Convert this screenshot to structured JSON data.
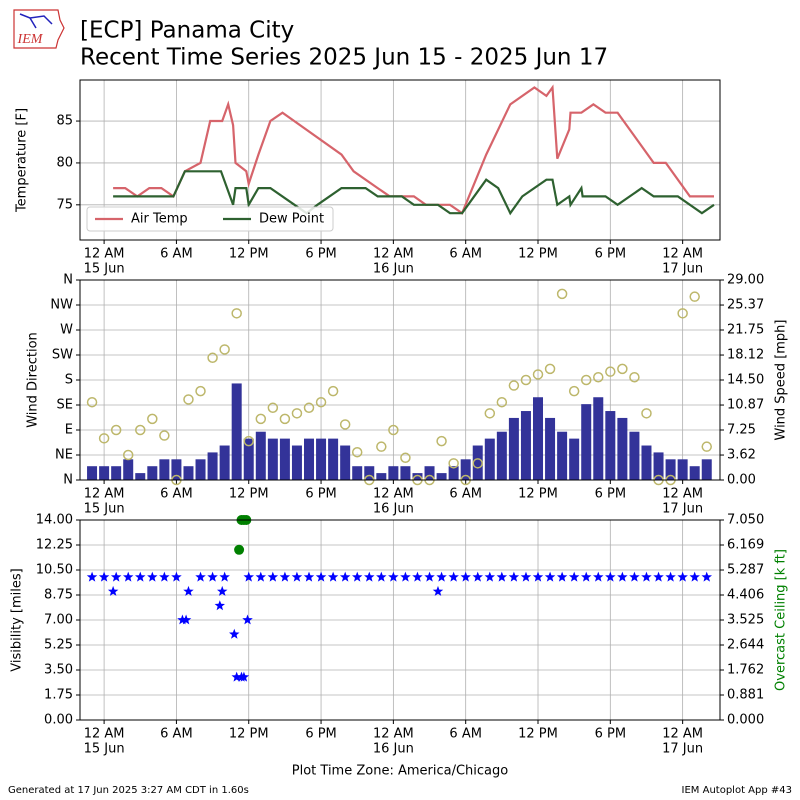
{
  "header": {
    "logo": "IEM",
    "title": "[ECP] Panama City",
    "subtitle": "Recent Time Series 2025 Jun 15 - 2025 Jun 17"
  },
  "footer": {
    "left": "Generated at 17 Jun 2025 3:27 AM CDT in 1.60s",
    "right": "IEM Autoplot App #43"
  },
  "chart_data": [
    {
      "type": "line",
      "ylabel": "Temperature [F]",
      "xlim": [
        -2,
        51.1
      ],
      "ylim": [
        70.8,
        89.9
      ],
      "yticks": [
        75,
        80,
        85
      ],
      "grid": true,
      "legend": "lower left",
      "xticks": [
        {
          "value": 0,
          "label": "12 AM",
          "sublabel": "15 Jun"
        },
        {
          "value": 6,
          "label": "6 AM"
        },
        {
          "value": 12,
          "label": "12 PM"
        },
        {
          "value": 18,
          "label": "6 PM"
        },
        {
          "value": 24,
          "label": "12 AM",
          "sublabel": "16 Jun"
        },
        {
          "value": 30,
          "label": "6 AM"
        },
        {
          "value": 36,
          "label": "12 PM"
        },
        {
          "value": 42,
          "label": "6 PM"
        },
        {
          "value": 48,
          "label": "12 AM",
          "sublabel": "17 Jun"
        }
      ],
      "series": [
        {
          "name": "Air Temp",
          "type": "line",
          "color": "#d6646b",
          "x": [
            0.75,
            1.75,
            2.75,
            3.75,
            4.75,
            5.75,
            6.7,
            8.0,
            8.8,
            9.8,
            10.3,
            10.7,
            10.9,
            11.8,
            12,
            12.8,
            13.8,
            14.8,
            19.7,
            20.7,
            22.7,
            23.7,
            25.7,
            26.7,
            28.7,
            29.7,
            31.7,
            33.7,
            35.7,
            36.7,
            37.2,
            37.6,
            38.6,
            38.7,
            39.6,
            40.6,
            41.6,
            42.6,
            45.6,
            46.6,
            48.6,
            50.6
          ],
          "values": [
            77,
            77,
            76,
            77,
            77,
            76,
            79,
            80,
            85,
            85,
            87,
            84.5,
            80,
            79,
            77.5,
            81,
            85,
            86,
            81,
            79,
            77,
            76,
            76,
            75,
            75,
            74,
            81,
            87,
            89,
            88,
            89,
            80.5,
            84,
            86,
            86,
            87,
            86,
            86,
            80,
            80,
            76,
            76
          ]
        },
        {
          "name": "Dew Point",
          "type": "line",
          "color": "#2e6130",
          "x": [
            0.75,
            5.75,
            6.7,
            9.7,
            10.7,
            10.9,
            11.8,
            12,
            12.8,
            13.8,
            16.8,
            17.7,
            19.7,
            21.7,
            22.7,
            24.7,
            25.7,
            27.7,
            28.7,
            29.7,
            31.7,
            32.7,
            33.7,
            34.7,
            36.7,
            37.2,
            37.6,
            38.6,
            38.7,
            39.6,
            39.7,
            41.6,
            42.6,
            44.6,
            45.6,
            47.6,
            49.6,
            50.6
          ],
          "values": [
            76,
            76,
            79,
            79,
            75,
            77,
            77,
            75,
            77,
            77,
            74,
            75,
            77,
            77,
            76,
            76,
            75,
            75,
            74,
            74,
            78,
            77,
            74,
            76,
            78,
            78,
            75,
            76,
            75,
            77,
            76,
            76,
            75,
            77,
            76,
            76,
            74,
            75
          ]
        }
      ]
    },
    {
      "type": "scatter",
      "ylabel": "Wind Direction",
      "y2label": "Wind Speed [mph]",
      "xlim": [
        -2,
        51.1
      ],
      "ylim": [
        0,
        360
      ],
      "y2lim": [
        0,
        29
      ],
      "grid": true,
      "xticks": [
        {
          "value": 0,
          "label": "12 AM",
          "sublabel": "15 Jun"
        },
        {
          "value": 6,
          "label": "6 AM"
        },
        {
          "value": 12,
          "label": "12 PM"
        },
        {
          "value": 18,
          "label": "6 PM"
        },
        {
          "value": 24,
          "label": "12 AM",
          "sublabel": "16 Jun"
        },
        {
          "value": 30,
          "label": "6 AM"
        },
        {
          "value": 36,
          "label": "12 PM"
        },
        {
          "value": 42,
          "label": "6 PM"
        },
        {
          "value": 48,
          "label": "12 AM",
          "sublabel": "17 Jun"
        }
      ],
      "yticks": [
        {
          "value": 0,
          "label": "N"
        },
        {
          "value": 45,
          "label": "NE"
        },
        {
          "value": 90,
          "label": "E"
        },
        {
          "value": 135,
          "label": "SE"
        },
        {
          "value": 180,
          "label": "S"
        },
        {
          "value": 225,
          "label": "SW"
        },
        {
          "value": 270,
          "label": "W"
        },
        {
          "value": 315,
          "label": "NW"
        },
        {
          "value": 360,
          "label": "N"
        }
      ],
      "y2ticks": [
        {
          "value": 0,
          "label": "0.00"
        },
        3.62,
        7.25,
        10.87,
        {
          "value": 14.5,
          "label": "14.50"
        },
        18.12,
        21.75,
        25.37,
        {
          "value": 29,
          "label": "29.00"
        }
      ],
      "series": [
        {
          "type": "bar",
          "axis": "y2",
          "color": "#333399",
          "x": [
            -1,
            0,
            1,
            2,
            3,
            4,
            5,
            6,
            7,
            8,
            9,
            10,
            11,
            12,
            13,
            14,
            15,
            16,
            17,
            18,
            19,
            20,
            21,
            22,
            23,
            24,
            25,
            26,
            27,
            28,
            29,
            30,
            31,
            32,
            33,
            34,
            35,
            36,
            37,
            38,
            39,
            40,
            41,
            42,
            43,
            44,
            45,
            46,
            47,
            48,
            49,
            50
          ],
          "values": [
            2,
            2,
            2,
            3,
            1,
            2,
            3,
            3,
            2,
            3,
            4,
            5,
            14,
            6,
            7,
            6,
            6,
            5,
            6,
            6,
            6,
            5,
            2,
            2,
            1,
            2,
            2,
            1,
            2,
            1,
            2,
            3,
            5,
            6,
            7,
            9,
            10,
            12,
            9,
            7,
            6,
            11,
            12,
            10,
            9,
            7,
            5,
            4,
            3,
            3,
            2,
            3
          ]
        },
        {
          "type": "scatter",
          "color": "#bdb76b",
          "x": [
            -1,
            0,
            1,
            2,
            3,
            4,
            5,
            6,
            7,
            8,
            9,
            10,
            11,
            12,
            13,
            14,
            15,
            16,
            17,
            18,
            19,
            20,
            21,
            22,
            23,
            24,
            25,
            26,
            27,
            28,
            29,
            30,
            31,
            32,
            33,
            34,
            35,
            36,
            37,
            38,
            39,
            40,
            41,
            42,
            43,
            44,
            45,
            46,
            47,
            48,
            49,
            50
          ],
          "values": [
            140,
            75,
            90,
            45,
            90,
            110,
            80,
            0,
            145,
            160,
            220,
            235,
            300,
            70,
            110,
            130,
            110,
            120,
            130,
            140,
            160,
            100,
            50,
            0,
            60,
            90,
            40,
            0,
            0,
            70,
            30,
            0,
            30,
            120,
            140,
            170,
            180,
            190,
            200,
            335,
            160,
            180,
            185,
            195,
            200,
            185,
            120,
            0,
            0,
            300,
            330,
            60
          ]
        }
      ]
    },
    {
      "type": "scatter",
      "ylabel": "Visibility [miles]",
      "y2label": "Overcast Ceiling [k ft]",
      "y2label_color": "#008000",
      "xlabel": "Plot Time Zone: America/Chicago",
      "xlim": [
        -2,
        51.1
      ],
      "ylim": [
        0,
        14
      ],
      "y2lim": [
        0,
        7.05
      ],
      "grid": true,
      "xticks": [
        {
          "value": 0,
          "label": "12 AM",
          "sublabel": "15 Jun"
        },
        {
          "value": 6,
          "label": "6 AM"
        },
        {
          "value": 12,
          "label": "12 PM"
        },
        {
          "value": 18,
          "label": "6 PM"
        },
        {
          "value": 24,
          "label": "12 AM",
          "sublabel": "16 Jun"
        },
        {
          "value": 30,
          "label": "6 AM"
        },
        {
          "value": 36,
          "label": "12 PM"
        },
        {
          "value": 42,
          "label": "6 PM"
        },
        {
          "value": 48,
          "label": "12 AM",
          "sublabel": "17 Jun"
        }
      ],
      "yticks": [
        {
          "value": 0,
          "label": "0.00"
        },
        1.75,
        {
          "value": 3.5,
          "label": "3.50"
        },
        5.25,
        {
          "value": 7,
          "label": "7.00"
        },
        8.75,
        {
          "value": 10.5,
          "label": "10.50"
        },
        12.25,
        {
          "value": 14,
          "label": "14.00"
        }
      ],
      "y2ticks": [
        {
          "value": 0,
          "label": "0.000"
        },
        0.881,
        1.762,
        2.644,
        3.525,
        4.406,
        5.287,
        6.169,
        {
          "value": 7.05,
          "label": "7.050"
        }
      ],
      "series": [
        {
          "type": "star",
          "color": "#0000ff",
          "x": [
            -1,
            0,
            0.75,
            1,
            2,
            3,
            4,
            5,
            6,
            6.5,
            6.8,
            7,
            8,
            9,
            9.6,
            9.8,
            10,
            10.8,
            11,
            11.4,
            11.6,
            11.9,
            12,
            13,
            14,
            15,
            16,
            17,
            18,
            19,
            20,
            21,
            22,
            23,
            24,
            25,
            26,
            27,
            27.7,
            28,
            29,
            30,
            31,
            32,
            33,
            34,
            35,
            36,
            37,
            38,
            39,
            40,
            41,
            42,
            43,
            44,
            45,
            46,
            47,
            48,
            49,
            50
          ],
          "values": [
            10,
            10,
            9,
            10,
            10,
            10,
            10,
            10,
            10,
            7,
            7,
            9,
            10,
            10,
            8,
            9,
            10,
            6,
            3,
            3,
            3,
            7,
            10,
            10,
            10,
            10,
            10,
            10,
            10,
            10,
            10,
            10,
            10,
            10,
            10,
            10,
            10,
            10,
            9,
            10,
            10,
            10,
            10,
            10,
            10,
            10,
            10,
            10,
            10,
            10,
            10,
            10,
            10,
            10,
            10,
            10,
            10,
            10,
            10,
            10,
            10,
            10
          ]
        },
        {
          "type": "dot",
          "axis": "y2",
          "color": "#008000",
          "x": [
            11.2,
            11.4,
            11.6,
            11.8
          ],
          "values": [
            6.0,
            7.05,
            7.05,
            7.05
          ]
        }
      ]
    }
  ]
}
